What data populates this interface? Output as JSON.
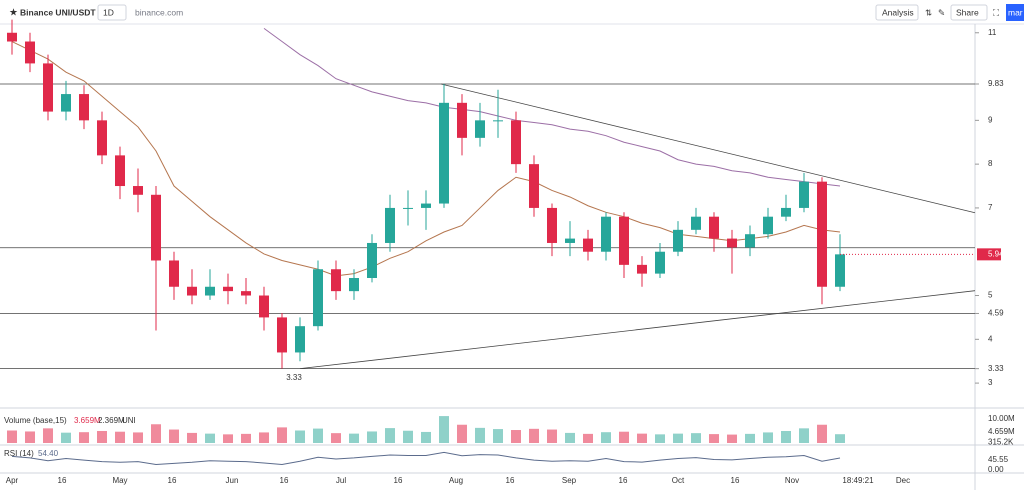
{
  "toolbar": {
    "symbol": "Binance UNI/USDT",
    "interval": "1D",
    "source": "binance.com",
    "analysis": "Analysis",
    "share": "Share",
    "cut_button": "mar"
  },
  "chart_data": {
    "type": "candlestick",
    "open": [
      11.0,
      10.8,
      10.3,
      9.2,
      9.6,
      9.0,
      8.2,
      7.5,
      7.3,
      5.8,
      5.2,
      5.0,
      5.2,
      5.1,
      5.0,
      4.5,
      3.7,
      4.3,
      5.6,
      5.1,
      5.4,
      6.2,
      7.0,
      7.0,
      7.1,
      9.4,
      8.6,
      9.0,
      9.0,
      8.0,
      7.0,
      6.2,
      6.3,
      6.0,
      6.8,
      5.7,
      5.5,
      6.0,
      6.5,
      6.8,
      6.3,
      6.1,
      6.4,
      6.8,
      7.0,
      7.6,
      5.2
    ],
    "high": [
      11.3,
      11.0,
      10.5,
      9.9,
      9.8,
      9.2,
      8.4,
      7.9,
      7.5,
      6.0,
      5.6,
      5.6,
      5.5,
      5.4,
      5.2,
      4.6,
      4.5,
      5.8,
      5.8,
      5.6,
      6.4,
      7.3,
      7.4,
      7.4,
      9.83,
      9.6,
      9.4,
      9.7,
      9.2,
      8.2,
      7.1,
      6.7,
      6.5,
      6.9,
      6.9,
      5.9,
      6.2,
      6.7,
      7.0,
      6.9,
      6.5,
      6.6,
      7.0,
      7.3,
      7.8,
      7.7,
      6.4
    ],
    "low": [
      10.5,
      10.1,
      9.0,
      9.0,
      8.8,
      8.0,
      7.2,
      6.9,
      4.2,
      4.9,
      4.8,
      4.9,
      4.8,
      4.8,
      4.2,
      3.33,
      3.5,
      4.2,
      4.9,
      4.9,
      5.3,
      6.0,
      6.6,
      6.5,
      7.0,
      8.2,
      8.4,
      8.6,
      7.8,
      6.8,
      5.9,
      5.9,
      5.8,
      5.8,
      5.4,
      5.2,
      5.4,
      5.9,
      6.4,
      6.0,
      5.5,
      5.9,
      6.3,
      6.7,
      6.9,
      4.8,
      5.1
    ],
    "close": [
      10.8,
      10.3,
      9.2,
      9.6,
      9.0,
      8.2,
      7.5,
      7.3,
      5.8,
      5.2,
      5.0,
      5.2,
      5.1,
      5.0,
      4.5,
      3.7,
      4.3,
      5.6,
      5.1,
      5.4,
      6.2,
      7.0,
      7.0,
      7.1,
      9.4,
      8.6,
      9.0,
      9.0,
      8.0,
      7.0,
      6.2,
      6.3,
      6.0,
      6.8,
      5.7,
      5.5,
      6.0,
      6.5,
      6.8,
      6.3,
      6.1,
      6.4,
      6.8,
      7.0,
      7.6,
      5.2,
      5.94
    ],
    "up_color": "#26a69a",
    "down_color": "#e0294a",
    "ma": [
      {
        "color": "#b5764f",
        "values": [
          10.8,
          10.6,
          10.4,
          10.1,
          9.9,
          9.55,
          9.2,
          8.85,
          8.3,
          7.5,
          7.15,
          6.8,
          6.5,
          6.2,
          5.95,
          5.8,
          5.7,
          5.6,
          5.45,
          5.5,
          5.65,
          5.85,
          6.0,
          6.25,
          6.45,
          6.6,
          7.0,
          7.4,
          7.7,
          7.6,
          7.4,
          7.25,
          7.05,
          6.9,
          6.8,
          6.65,
          6.55,
          6.4,
          6.35,
          6.3,
          6.25,
          6.3,
          6.35,
          6.45,
          6.6,
          6.5,
          6.45
        ]
      },
      {
        "color": "#9c6fa6",
        "values": [
          null,
          null,
          null,
          null,
          null,
          null,
          null,
          null,
          null,
          null,
          null,
          null,
          null,
          null,
          11.1,
          10.8,
          10.5,
          10.25,
          9.95,
          9.8,
          9.65,
          9.55,
          9.45,
          9.4,
          9.3,
          9.25,
          9.2,
          9.1,
          9.0,
          8.95,
          8.9,
          8.8,
          8.75,
          8.65,
          8.5,
          8.4,
          8.3,
          8.1,
          8.0,
          7.95,
          7.85,
          7.8,
          7.7,
          7.65,
          7.6,
          7.55,
          7.5
        ]
      }
    ],
    "levels": [
      9.83,
      6.09,
      4.59,
      3.33
    ],
    "trendlines": [
      {
        "y": [
          9.83,
          6.89
        ]
      },
      {
        "y": [
          3.33,
          5.11
        ]
      }
    ],
    "ylim": [
      2.5,
      11.2
    ],
    "yticks": [
      11,
      9.83,
      9,
      8,
      7,
      5,
      4.59,
      4,
      3.33,
      3
    ],
    "grid": false,
    "xlabels": [
      "Apr",
      "16",
      "May",
      "16",
      "Jun",
      "16",
      "Jul",
      "16",
      "Aug",
      "16",
      "Sep",
      "16",
      "Oct",
      "16",
      "Nov",
      "18:49:21",
      "Dec"
    ],
    "volume": {
      "name": "Volume (base,15)",
      "legend_values": [
        "3.659M",
        "2.369M"
      ],
      "unit": "UNI",
      "values": [
        5200000,
        4800000,
        6100000,
        4300000,
        4500000,
        5000000,
        4700000,
        4400000,
        7800000,
        5600000,
        4200000,
        3900000,
        3600000,
        3800000,
        4400000,
        6500000,
        5200000,
        6000000,
        4100000,
        3900000,
        4800000,
        6200000,
        5100000,
        4600000,
        11200000,
        7600000,
        6300000,
        5800000,
        5400000,
        5900000,
        5600000,
        4200000,
        3800000,
        4500000,
        4700000,
        3900000,
        3600000,
        3900000,
        4100000,
        3700000,
        3500000,
        3800000,
        4400000,
        5000000,
        6100000,
        7600000,
        3659000
      ],
      "ylim": [
        0,
        12900000
      ],
      "yticks": [
        {
          "value": 10000000,
          "label": "10.00M"
        },
        {
          "value": 4659000,
          "label": "4.659M"
        },
        {
          "value": 315200,
          "label": "315.2K"
        }
      ]
    },
    "rsi": {
      "name": "RSI (14)",
      "last_label": "54.40",
      "color": "#5b6b8c",
      "values": [
        62,
        55,
        42,
        52,
        45,
        38,
        35,
        38,
        25,
        30,
        35,
        42,
        40,
        38,
        32,
        25,
        40,
        58,
        50,
        55,
        62,
        68,
        66,
        66,
        80,
        65,
        70,
        68,
        55,
        45,
        40,
        42,
        40,
        52,
        38,
        36,
        45,
        52,
        56,
        48,
        46,
        52,
        58,
        60,
        66,
        40,
        54.4
      ],
      "ylim": [
        0,
        100
      ],
      "yticks": [
        45.55,
        {
          "value": 0,
          "label": "0.00"
        }
      ]
    }
  }
}
